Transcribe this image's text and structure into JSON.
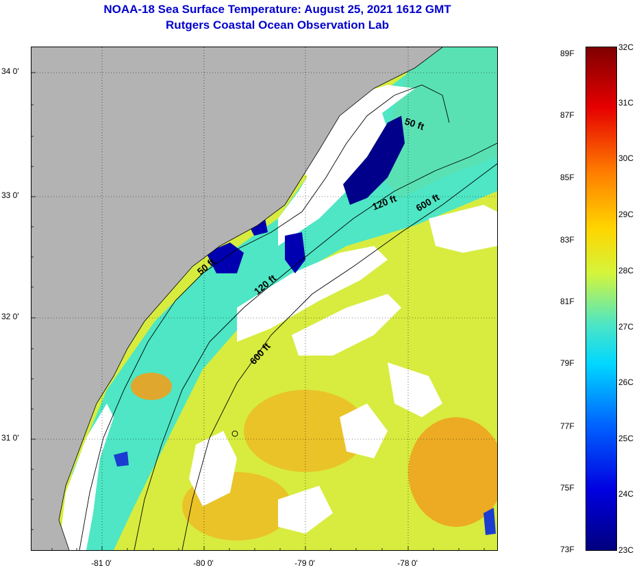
{
  "header": {
    "title": "NOAA-18 Sea Surface Temperature:  August 25, 2021 1612 GMT",
    "subtitle": "Rutgers Coastal Ocean Observation Lab"
  },
  "map": {
    "lat_labels": [
      "34 0'",
      "33 0'",
      "32 0'",
      "31 0'"
    ],
    "lon_labels": [
      "-81 0'",
      "-80 0'",
      "-79 0'",
      "-78 0'"
    ],
    "contour_labels": {
      "c50_north": "50 ft",
      "c120_north": "120 ft",
      "c600_north": "600 ft",
      "c50_south": "50 ft",
      "c120_south": "120 ft",
      "c600_south": "600 ft"
    },
    "colors": {
      "land": "#b3b3b3",
      "cloud": "#ffffff",
      "water_main": "#d7ec3f",
      "water_cool": "#4ee6c4",
      "water_cold": "#00008a",
      "water_warm": "#f0a01e"
    }
  },
  "colorbar": {
    "f_labels": [
      "89F",
      "87F",
      "85F",
      "83F",
      "81F",
      "79F",
      "77F",
      "75F",
      "73F"
    ],
    "c_labels": [
      "32C",
      "31C",
      "30C",
      "29C",
      "28C",
      "27C",
      "26C",
      "25C",
      "24C",
      "23C"
    ]
  }
}
